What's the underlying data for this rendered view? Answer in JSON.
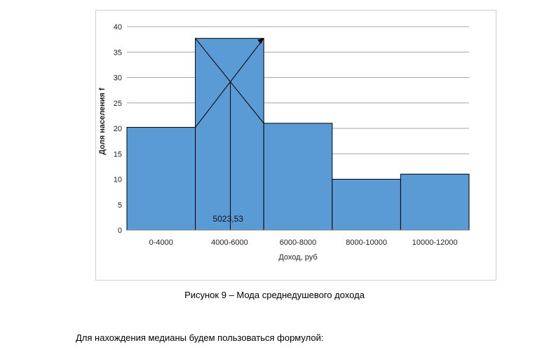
{
  "chart_data": {
    "type": "bar",
    "categories": [
      "0-4000",
      "4000-6000",
      "6000-8000",
      "8000-10000",
      "10000-12000"
    ],
    "values": [
      20.2,
      37.7,
      21.0,
      10.0,
      11.0
    ],
    "xlabel": "Доход, руб",
    "ylabel": "Доля населения f",
    "ylim": [
      0,
      40
    ],
    "yticks": [
      0,
      5,
      10,
      15,
      20,
      25,
      30,
      35,
      40
    ],
    "grid": true,
    "bar_color": "#5b9bd5",
    "bar_border_color": "#000000",
    "annotation": {
      "text": "5023,53",
      "mode_x_value": 5023.53,
      "mode_y_value": 29.3
    }
  },
  "caption": "Рисунок 9 – Мода среднедушевого дохода",
  "body_text": "Для нахождения медианы будем пользоваться формулой:"
}
